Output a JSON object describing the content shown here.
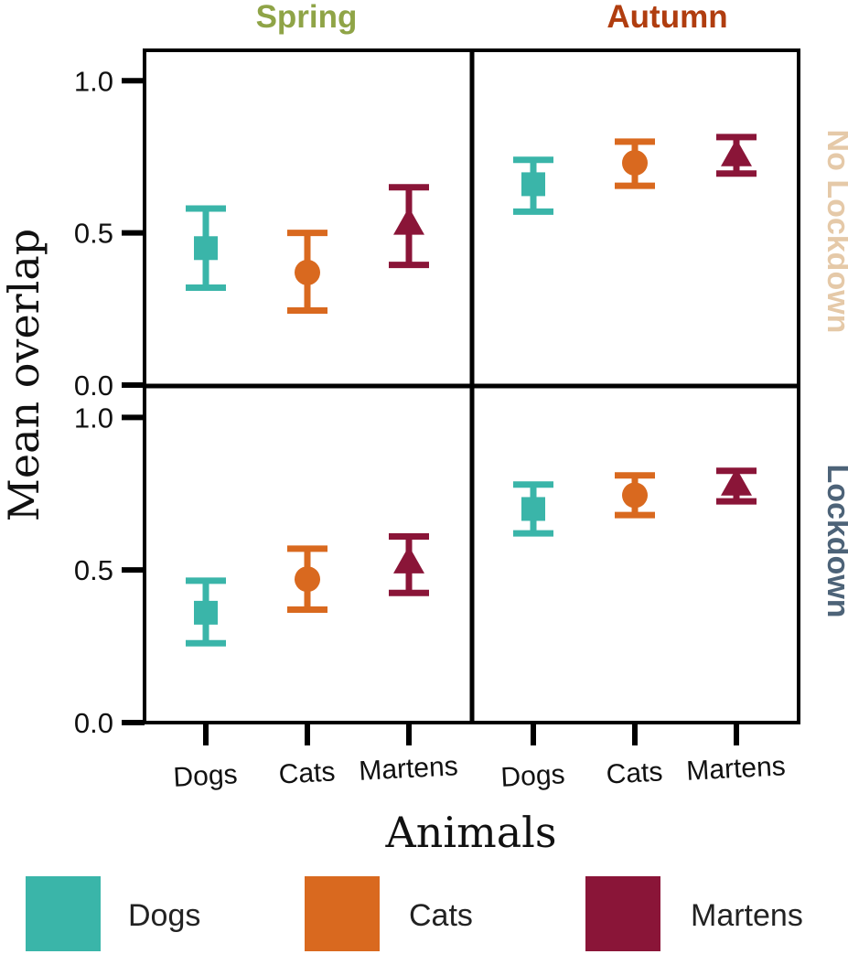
{
  "chart_data": {
    "type": "scatter",
    "subtype": "point-range faceted",
    "ylabel": "Mean overlap",
    "xlabel": "Animals",
    "ylim": [
      0,
      1.1
    ],
    "yticks": [
      "0.0",
      "0.5",
      "1.0"
    ],
    "yticks_values": [
      0,
      0.5,
      1.0
    ],
    "categories": [
      "Dogs",
      "Cats",
      "Martens"
    ],
    "columns": [
      {
        "label": "Spring",
        "color": "#8fa447"
      },
      {
        "label": "Autumn",
        "color": "#b03d0f"
      }
    ],
    "rows": [
      {
        "label": "No Lockdown",
        "color": "#e5c9a8"
      },
      {
        "label": "Lockdown",
        "color": "#4d6378"
      }
    ],
    "series": [
      {
        "name": "Dogs",
        "color": "#3ab5a9",
        "marker": "square"
      },
      {
        "name": "Cats",
        "color": "#d9691f",
        "marker": "circle"
      },
      {
        "name": "Martens",
        "color": "#8a1538",
        "marker": "triangle"
      }
    ],
    "panels": [
      {
        "row": "No Lockdown",
        "column": "Spring",
        "points": [
          {
            "category": "Dogs",
            "mean": 0.45,
            "low": 0.32,
            "high": 0.58
          },
          {
            "category": "Cats",
            "mean": 0.37,
            "low": 0.245,
            "high": 0.5
          },
          {
            "category": "Martens",
            "mean": 0.53,
            "low": 0.395,
            "high": 0.65
          }
        ]
      },
      {
        "row": "No Lockdown",
        "column": "Autumn",
        "points": [
          {
            "category": "Dogs",
            "mean": 0.66,
            "low": 0.57,
            "high": 0.74
          },
          {
            "category": "Cats",
            "mean": 0.73,
            "low": 0.655,
            "high": 0.8
          },
          {
            "category": "Martens",
            "mean": 0.755,
            "low": 0.695,
            "high": 0.815
          }
        ]
      },
      {
        "row": "Lockdown",
        "column": "Spring",
        "points": [
          {
            "category": "Dogs",
            "mean": 0.36,
            "low": 0.26,
            "high": 0.465
          },
          {
            "category": "Cats",
            "mean": 0.47,
            "low": 0.37,
            "high": 0.57
          },
          {
            "category": "Martens",
            "mean": 0.525,
            "low": 0.425,
            "high": 0.61
          }
        ]
      },
      {
        "row": "Lockdown",
        "column": "Autumn",
        "points": [
          {
            "category": "Dogs",
            "mean": 0.7,
            "low": 0.62,
            "high": 0.78
          },
          {
            "category": "Cats",
            "mean": 0.745,
            "low": 0.68,
            "high": 0.81
          },
          {
            "category": "Martens",
            "mean": 0.78,
            "low": 0.725,
            "high": 0.825
          }
        ]
      }
    ],
    "legend": {
      "position": "bottom",
      "entries": [
        "Dogs",
        "Cats",
        "Martens"
      ]
    }
  }
}
